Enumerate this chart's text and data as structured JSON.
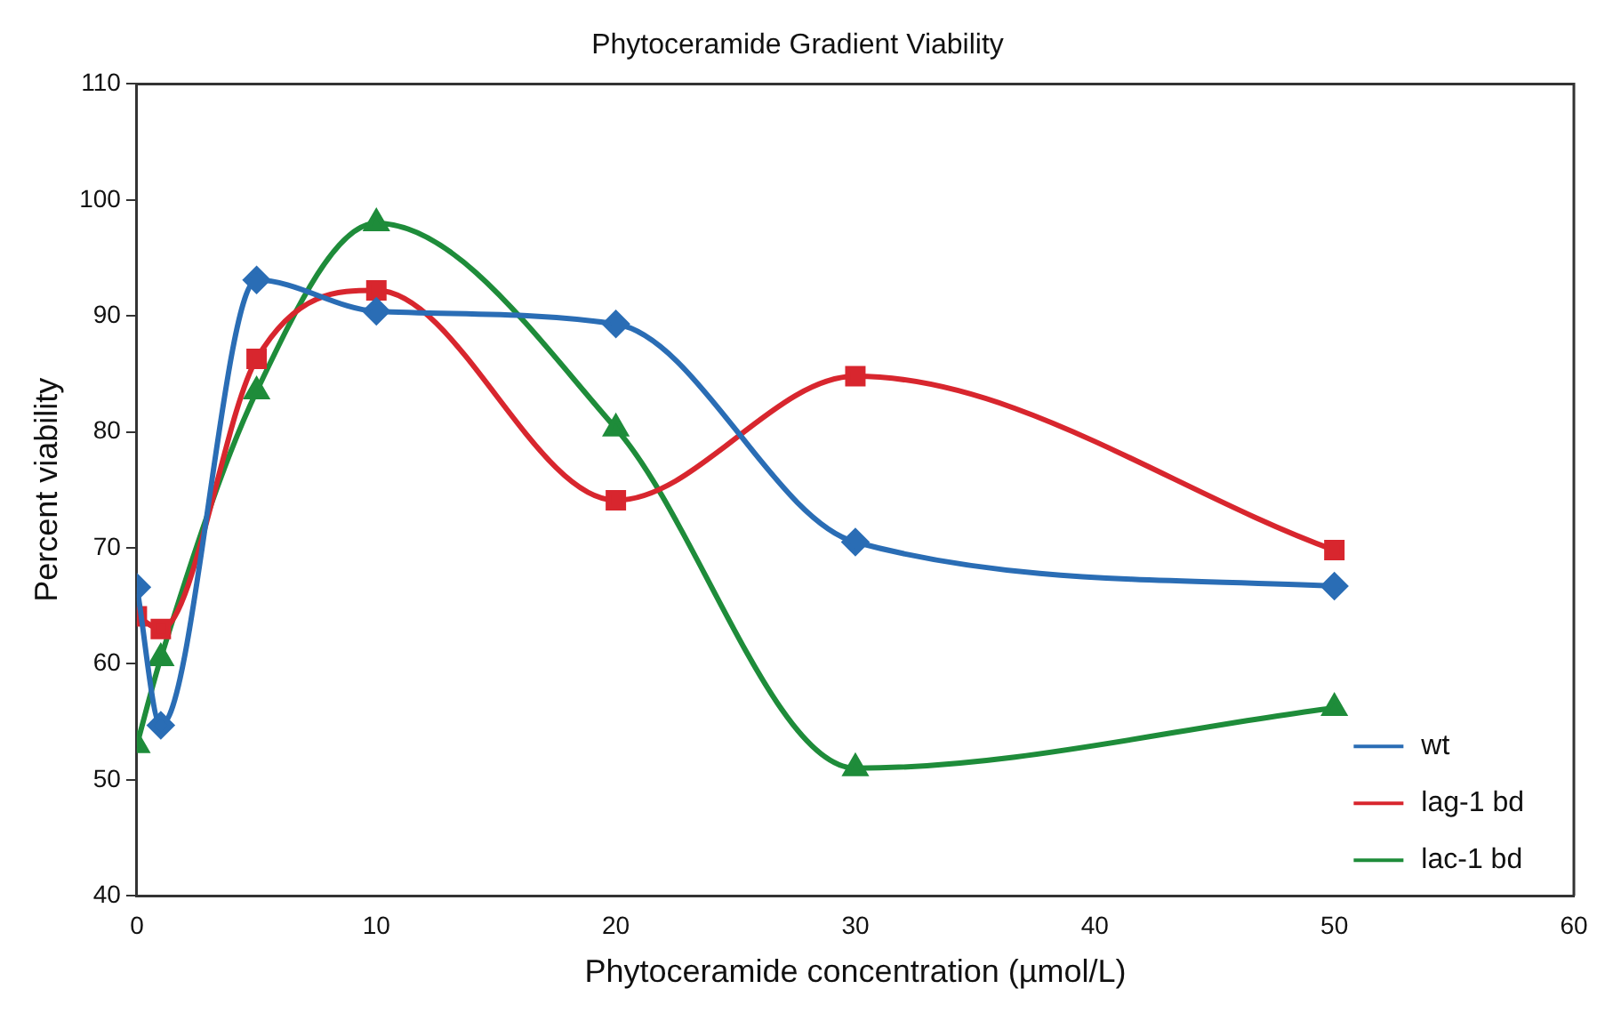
{
  "chart_data": {
    "type": "line",
    "title": "Phytoceramide Gradient Viability",
    "xlabel": "Phytoceramide concentration (µmol/L)",
    "ylabel": "Percent viability",
    "x": [
      0,
      1,
      5,
      10,
      20,
      30,
      50
    ],
    "series": [
      {
        "name": "wt",
        "color": "#2a6db5",
        "marker": "diamond",
        "values": [
          66.6,
          54.7,
          93.1,
          90.4,
          89.3,
          70.5,
          66.7
        ]
      },
      {
        "name": "lag-1 bd",
        "color": "#d8262e",
        "marker": "square",
        "values": [
          64.1,
          63.0,
          86.3,
          92.2,
          74.1,
          84.8,
          69.8
        ]
      },
      {
        "name": "lac-1 bd",
        "color": "#1e8c3a",
        "marker": "triangle",
        "values": [
          53.0,
          60.5,
          83.5,
          98.0,
          80.3,
          51.0,
          56.2
        ]
      }
    ],
    "xlim": [
      0,
      60
    ],
    "xticks": [
      0,
      10,
      20,
      30,
      40,
      50,
      60
    ],
    "ylim": [
      40,
      110
    ],
    "yticks": [
      40,
      50,
      60,
      70,
      80,
      90,
      100,
      110
    ],
    "grid": false,
    "legend": "bottom right",
    "line_style": "solid"
  }
}
